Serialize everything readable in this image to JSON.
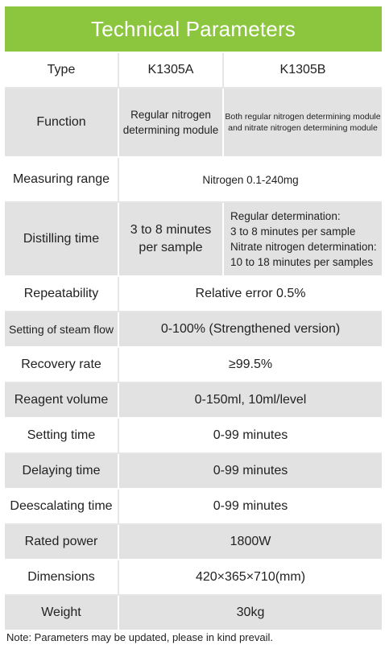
{
  "header": {
    "title": "Technical Parameters"
  },
  "rows": {
    "type": {
      "label": "Type",
      "a": "K1305A",
      "b": "K1305B"
    },
    "function": {
      "label": "Function",
      "a_line1": "Regular nitrogen",
      "a_line2": "determining module",
      "b_line1": "Both regular nitrogen determining module",
      "b_line2": "and nitrate nitrogen determining module"
    },
    "measuring_range": {
      "label": "Measuring range",
      "value": "Nitrogen 0.1-240mg"
    },
    "distilling_time": {
      "label": "Distilling time",
      "a_line1": "3 to 8 minutes",
      "a_line2": "per sample",
      "b_line1": "Regular determination:",
      "b_line2": "3 to 8 minutes per sample",
      "b_line3": "Nitrate nitrogen determination:",
      "b_line4": "10 to 18 minutes per samples"
    },
    "repeatability": {
      "label": "Repeatability",
      "value": "Relative error 0.5%"
    },
    "steam_flow": {
      "label": "Setting of steam flow",
      "value": "0-100% (Strengthened version)"
    },
    "recovery_rate": {
      "label": "Recovery rate",
      "value": "≥99.5%"
    },
    "reagent_volume": {
      "label": "Reagent volume",
      "value": "0-150ml, 10ml/level"
    },
    "setting_time": {
      "label": "Setting time",
      "value": "0-99 minutes"
    },
    "delaying_time": {
      "label": "Delaying time",
      "value": "0-99 minutes"
    },
    "deescalating_time": {
      "label": "Deescalating time",
      "value": "0-99 minutes"
    },
    "rated_power": {
      "label": "Rated power",
      "value": "1800W"
    },
    "dimensions": {
      "label": "Dimensions",
      "value": "420×365×710(mm)"
    },
    "weight": {
      "label": "Weight",
      "value": "30kg"
    }
  },
  "note": "Note: Parameters may be updated, please in kind prevail.",
  "colors": {
    "header_bg": "#8cc63e",
    "row_gray": "#e2e2e2",
    "row_white": "#ffffff"
  }
}
